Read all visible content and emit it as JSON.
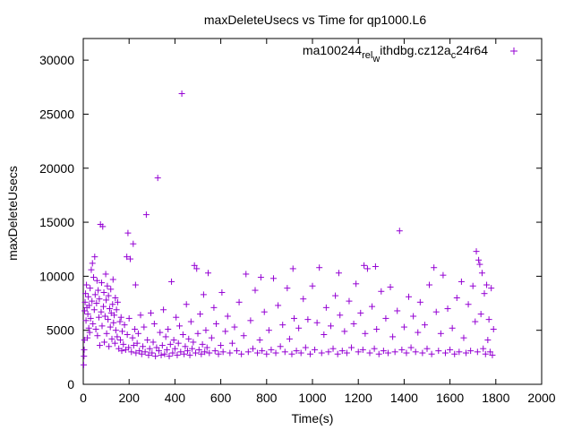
{
  "chart_data": {
    "type": "scatter",
    "title": "maxDeleteUsecs vs Time for qp1000.L6",
    "xlabel": "Time(s)",
    "ylabel": "maxDeleteUsecs",
    "xlim": [
      0,
      2000
    ],
    "ylim": [
      0,
      32000
    ],
    "xticks": [
      0,
      200,
      400,
      600,
      800,
      1000,
      1200,
      1400,
      1600,
      1800,
      2000
    ],
    "yticks": [
      0,
      5000,
      10000,
      15000,
      20000,
      25000,
      30000
    ],
    "legend_position": "top-right",
    "legend_text_parts": [
      "ma100244",
      "rel",
      "w",
      "ithdbg.cz12a",
      "c",
      "24r64"
    ],
    "series": [
      {
        "name": "ma100244_rel_withdbg.cz12a_c24r64",
        "color": "#9400d3",
        "marker": "+",
        "points": [
          [
            2,
            1800
          ],
          [
            3,
            2600
          ],
          [
            4,
            3200
          ],
          [
            5,
            4100
          ],
          [
            6,
            6800
          ],
          [
            8,
            7600
          ],
          [
            10,
            8400
          ],
          [
            12,
            5900
          ],
          [
            14,
            9200
          ],
          [
            16,
            7100
          ],
          [
            18,
            4300
          ],
          [
            20,
            6500
          ],
          [
            22,
            8100
          ],
          [
            24,
            5200
          ],
          [
            26,
            7300
          ],
          [
            28,
            4800
          ],
          [
            30,
            8900
          ],
          [
            32,
            6100
          ],
          [
            35,
            10600
          ],
          [
            38,
            7700
          ],
          [
            40,
            11200
          ],
          [
            42,
            5600
          ],
          [
            45,
            9900
          ],
          [
            48,
            6900
          ],
          [
            50,
            11800
          ],
          [
            52,
            8300
          ],
          [
            55,
            5100
          ],
          [
            58,
            7500
          ],
          [
            60,
            9600
          ],
          [
            62,
            4500
          ],
          [
            65,
            8700
          ],
          [
            68,
            6200
          ],
          [
            70,
            7900
          ],
          [
            72,
            3600
          ],
          [
            75,
            14800
          ],
          [
            78,
            6700
          ],
          [
            80,
            9400
          ],
          [
            82,
            5400
          ],
          [
            85,
            14600
          ],
          [
            88,
            7200
          ],
          [
            90,
            8500
          ],
          [
            92,
            3900
          ],
          [
            95,
            6300
          ],
          [
            98,
            10200
          ],
          [
            100,
            7800
          ],
          [
            102,
            4700
          ],
          [
            105,
            9100
          ],
          [
            108,
            6000
          ],
          [
            110,
            8200
          ],
          [
            112,
            3500
          ],
          [
            115,
            7000
          ],
          [
            118,
            5300
          ],
          [
            120,
            8800
          ],
          [
            122,
            6600
          ],
          [
            125,
            4200
          ],
          [
            128,
            7400
          ],
          [
            130,
            9700
          ],
          [
            132,
            5700
          ],
          [
            135,
            6400
          ],
          [
            138,
            3800
          ],
          [
            140,
            8000
          ],
          [
            142,
            5000
          ],
          [
            145,
            6900
          ],
          [
            148,
            4400
          ],
          [
            150,
            7600
          ],
          [
            155,
            3300
          ],
          [
            160,
            5800
          ],
          [
            162,
            4100
          ],
          [
            165,
            6200
          ],
          [
            168,
            3100
          ],
          [
            170,
            4900
          ],
          [
            175,
            3700
          ],
          [
            180,
            5500
          ],
          [
            185,
            3200
          ],
          [
            190,
            11800
          ],
          [
            192,
            4600
          ],
          [
            195,
            14000
          ],
          [
            198,
            3400
          ],
          [
            200,
            6100
          ],
          [
            205,
            11600
          ],
          [
            210,
            3000
          ],
          [
            215,
            4300
          ],
          [
            218,
            13000
          ],
          [
            220,
            3600
          ],
          [
            225,
            5100
          ],
          [
            228,
            9200
          ],
          [
            230,
            2900
          ],
          [
            235,
            3800
          ],
          [
            240,
            4700
          ],
          [
            245,
            3100
          ],
          [
            250,
            6400
          ],
          [
            255,
            2800
          ],
          [
            260,
            3500
          ],
          [
            265,
            5300
          ],
          [
            270,
            3000
          ],
          [
            275,
            15700
          ],
          [
            280,
            4100
          ],
          [
            285,
            2700
          ],
          [
            290,
            3300
          ],
          [
            295,
            6600
          ],
          [
            300,
            2900
          ],
          [
            305,
            3900
          ],
          [
            310,
            5600
          ],
          [
            315,
            2600
          ],
          [
            320,
            3400
          ],
          [
            325,
            19100
          ],
          [
            330,
            3100
          ],
          [
            335,
            4800
          ],
          [
            340,
            2700
          ],
          [
            345,
            3600
          ],
          [
            350,
            6900
          ],
          [
            355,
            2800
          ],
          [
            360,
            4400
          ],
          [
            365,
            3200
          ],
          [
            370,
            5100
          ],
          [
            375,
            2600
          ],
          [
            380,
            3700
          ],
          [
            385,
            9500
          ],
          [
            390,
            2900
          ],
          [
            395,
            4100
          ],
          [
            400,
            3300
          ],
          [
            405,
            6200
          ],
          [
            410,
            2700
          ],
          [
            415,
            3800
          ],
          [
            420,
            5400
          ],
          [
            425,
            3000
          ],
          [
            430,
            26900
          ],
          [
            435,
            4600
          ],
          [
            440,
            2800
          ],
          [
            445,
            3500
          ],
          [
            450,
            7400
          ],
          [
            455,
            3100
          ],
          [
            460,
            4200
          ],
          [
            465,
            2700
          ],
          [
            470,
            5800
          ],
          [
            475,
            3300
          ],
          [
            480,
            3900
          ],
          [
            485,
            11000
          ],
          [
            490,
            2900
          ],
          [
            495,
            10700
          ],
          [
            500,
            4700
          ],
          [
            505,
            3200
          ],
          [
            510,
            6500
          ],
          [
            515,
            2800
          ],
          [
            520,
            3700
          ],
          [
            525,
            8300
          ],
          [
            530,
            3000
          ],
          [
            535,
            5000
          ],
          [
            540,
            3400
          ],
          [
            545,
            10300
          ],
          [
            550,
            2900
          ],
          [
            560,
            4300
          ],
          [
            570,
            7100
          ],
          [
            575,
            3100
          ],
          [
            580,
            5600
          ],
          [
            590,
            2800
          ],
          [
            600,
            3600
          ],
          [
            605,
            8500
          ],
          [
            610,
            3000
          ],
          [
            620,
            4900
          ],
          [
            630,
            6300
          ],
          [
            640,
            2900
          ],
          [
            650,
            3800
          ],
          [
            660,
            5300
          ],
          [
            670,
            3100
          ],
          [
            680,
            7600
          ],
          [
            690,
            2800
          ],
          [
            700,
            4500
          ],
          [
            710,
            10200
          ],
          [
            720,
            3000
          ],
          [
            730,
            5900
          ],
          [
            740,
            3300
          ],
          [
            750,
            8700
          ],
          [
            760,
            2900
          ],
          [
            770,
            4100
          ],
          [
            775,
            9900
          ],
          [
            780,
            3100
          ],
          [
            790,
            6700
          ],
          [
            800,
            2800
          ],
          [
            810,
            5000
          ],
          [
            820,
            3200
          ],
          [
            830,
            9800
          ],
          [
            840,
            2900
          ],
          [
            850,
            7300
          ],
          [
            860,
            3500
          ],
          [
            870,
            5500
          ],
          [
            880,
            3000
          ],
          [
            890,
            8900
          ],
          [
            900,
            4200
          ],
          [
            910,
            2800
          ],
          [
            915,
            10700
          ],
          [
            920,
            6100
          ],
          [
            930,
            3100
          ],
          [
            940,
            5200
          ],
          [
            950,
            2900
          ],
          [
            960,
            7900
          ],
          [
            970,
            3400
          ],
          [
            980,
            6000
          ],
          [
            990,
            2800
          ],
          [
            1000,
            9100
          ],
          [
            1010,
            3200
          ],
          [
            1020,
            5700
          ],
          [
            1030,
            10800
          ],
          [
            1040,
            2900
          ],
          [
            1050,
            4600
          ],
          [
            1060,
            7100
          ],
          [
            1070,
            3000
          ],
          [
            1080,
            5400
          ],
          [
            1090,
            3300
          ],
          [
            1100,
            8200
          ],
          [
            1110,
            2800
          ],
          [
            1115,
            10300
          ],
          [
            1120,
            6400
          ],
          [
            1130,
            3100
          ],
          [
            1140,
            4900
          ],
          [
            1150,
            2900
          ],
          [
            1160,
            7700
          ],
          [
            1170,
            3400
          ],
          [
            1180,
            5600
          ],
          [
            1190,
            9300
          ],
          [
            1200,
            3000
          ],
          [
            1210,
            6600
          ],
          [
            1220,
            3200
          ],
          [
            1225,
            11000
          ],
          [
            1230,
            4700
          ],
          [
            1240,
            10700
          ],
          [
            1250,
            2900
          ],
          [
            1260,
            7200
          ],
          [
            1270,
            3300
          ],
          [
            1275,
            10900
          ],
          [
            1280,
            5100
          ],
          [
            1290,
            2800
          ],
          [
            1300,
            8600
          ],
          [
            1310,
            3100
          ],
          [
            1320,
            6100
          ],
          [
            1330,
            2900
          ],
          [
            1340,
            9000
          ],
          [
            1350,
            4400
          ],
          [
            1360,
            3000
          ],
          [
            1370,
            6800
          ],
          [
            1380,
            14200
          ],
          [
            1390,
            3200
          ],
          [
            1400,
            5300
          ],
          [
            1410,
            2900
          ],
          [
            1420,
            8100
          ],
          [
            1430,
            3400
          ],
          [
            1440,
            6300
          ],
          [
            1450,
            3000
          ],
          [
            1460,
            4800
          ],
          [
            1470,
            7600
          ],
          [
            1480,
            2900
          ],
          [
            1490,
            5500
          ],
          [
            1500,
            3300
          ],
          [
            1510,
            9200
          ],
          [
            1520,
            2800
          ],
          [
            1530,
            10800
          ],
          [
            1540,
            6700
          ],
          [
            1550,
            3100
          ],
          [
            1560,
            4700
          ],
          [
            1570,
            10100
          ],
          [
            1580,
            2900
          ],
          [
            1590,
            7000
          ],
          [
            1600,
            3200
          ],
          [
            1610,
            5200
          ],
          [
            1620,
            2800
          ],
          [
            1630,
            8000
          ],
          [
            1640,
            3000
          ],
          [
            1650,
            9500
          ],
          [
            1660,
            4300
          ],
          [
            1670,
            2900
          ],
          [
            1680,
            7400
          ],
          [
            1690,
            3100
          ],
          [
            1700,
            9100
          ],
          [
            1710,
            5800
          ],
          [
            1715,
            12300
          ],
          [
            1720,
            3000
          ],
          [
            1725,
            11500
          ],
          [
            1730,
            11100
          ],
          [
            1735,
            6500
          ],
          [
            1740,
            10300
          ],
          [
            1745,
            3300
          ],
          [
            1750,
            8400
          ],
          [
            1755,
            2800
          ],
          [
            1760,
            9200
          ],
          [
            1765,
            4100
          ],
          [
            1770,
            6000
          ],
          [
            1775,
            3000
          ],
          [
            1780,
            8900
          ],
          [
            1785,
            2700
          ],
          [
            1790,
            5100
          ]
        ]
      }
    ]
  }
}
